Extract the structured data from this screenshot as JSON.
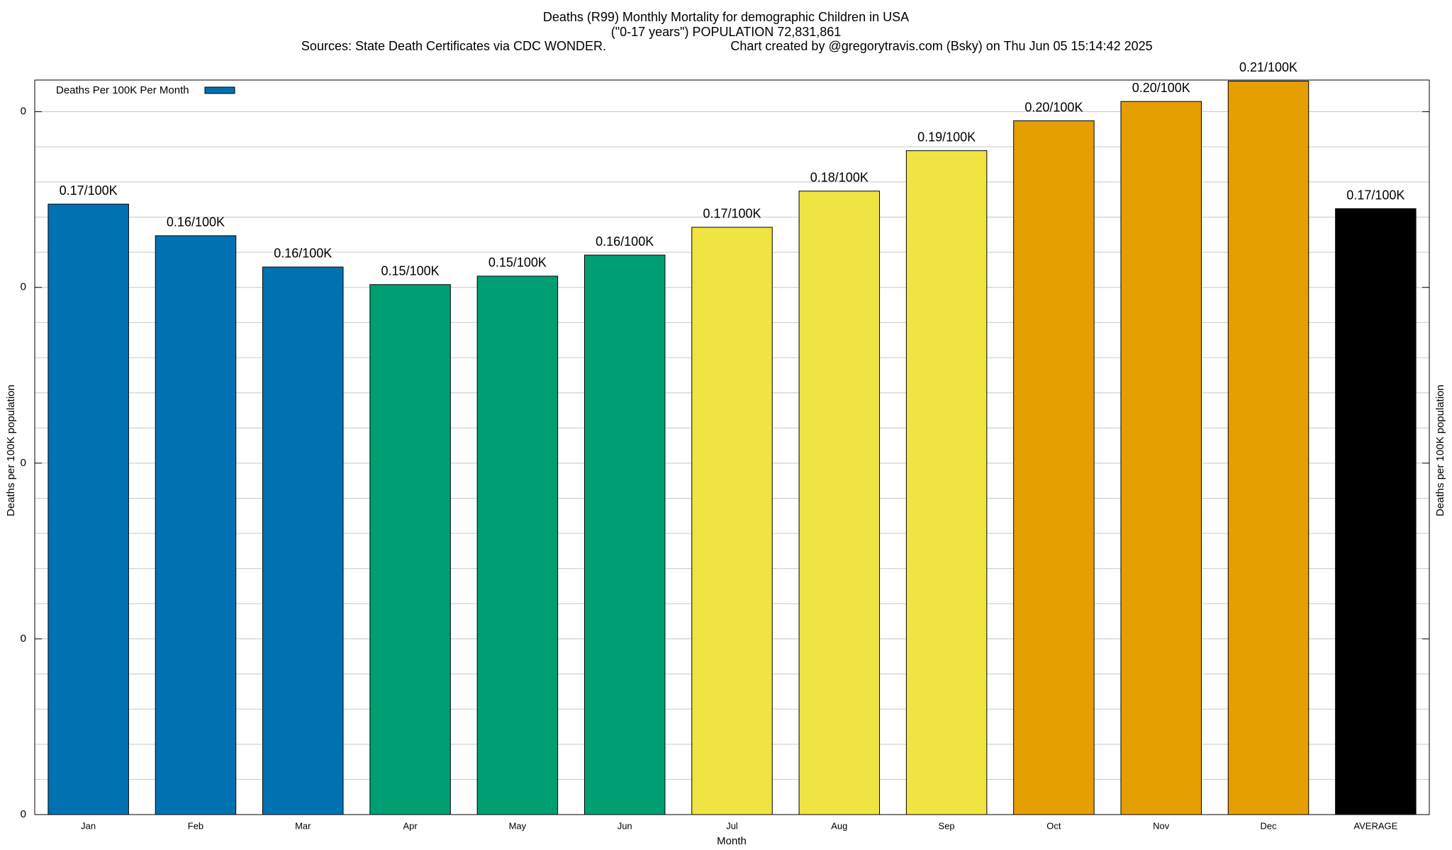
{
  "chart_data": {
    "type": "bar",
    "title": "Deaths (R99) Monthly Mortality for demographic Children in USA",
    "subtitle": "(\"0-17 years\") POPULATION 72,831,861",
    "source": "Sources: State Death Certificates via CDC WONDER.",
    "credit": "Chart created by @gregorytravis.com (Bsky) on Thu Jun 05 15:14:42 2025",
    "x_label": "Month",
    "y_label": "Deaths per 100K population",
    "y2_label": "Deaths per 100K population",
    "categories": [
      "Jan",
      "Feb",
      "Mar",
      "Apr",
      "May",
      "Jun",
      "Jul",
      "Aug",
      "Sep",
      "Oct",
      "Nov",
      "Dec",
      "AVERAGE"
    ],
    "series": [
      {
        "name": "Deaths Per 100K Per Month",
        "color": "#0072b2",
        "colors": [
          "#0072b2",
          "#0072b2",
          "#0072b2",
          "#009e73",
          "#009e73",
          "#009e73",
          "#f0e442",
          "#f0e442",
          "#f0e442",
          "#e69f00",
          "#e69f00",
          "#e69f00",
          "#000000"
        ],
        "values": [
          0.1737,
          0.1647,
          0.1558,
          0.1508,
          0.1532,
          0.1592,
          0.1671,
          0.1774,
          0.1889,
          0.1974,
          0.2029,
          0.2087,
          0.1724
        ],
        "value_labels": [
          "0.17/100K",
          "0.16/100K",
          "0.16/100K",
          "0.15/100K",
          "0.15/100K",
          "0.16/100K",
          "0.17/100K",
          "0.18/100K",
          "0.19/100K",
          "0.20/100K",
          "0.20/100K",
          "0.21/100K",
          "0.17/100K"
        ]
      }
    ],
    "ylim": [
      0,
      0.209
    ],
    "yticks": [
      {
        "value": 0,
        "label": "0"
      },
      {
        "value": 0.05,
        "label": "0"
      },
      {
        "value": 0.1,
        "label": "0"
      },
      {
        "value": 0.15,
        "label": "0"
      },
      {
        "value": 0.2,
        "label": "0"
      }
    ],
    "minor_yticks": [
      0.01,
      0.02,
      0.03,
      0.04,
      0.06,
      0.07,
      0.08,
      0.09,
      0.11,
      0.12,
      0.13,
      0.14,
      0.16,
      0.17,
      0.18,
      0.19
    ],
    "grid": true,
    "legend": "upper left"
  }
}
